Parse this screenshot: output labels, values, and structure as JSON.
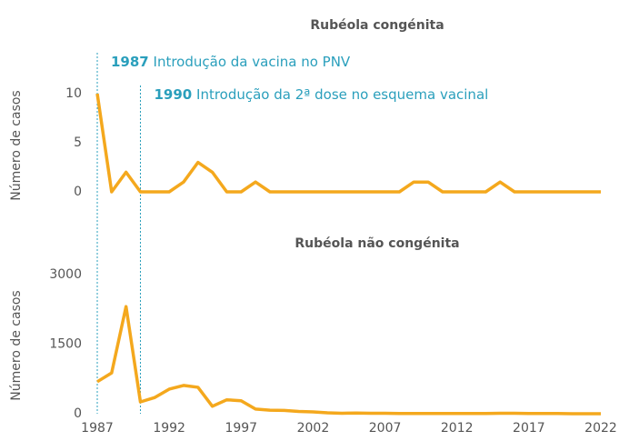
{
  "chart_data": [
    {
      "type": "line",
      "title": "Rubéola congénita",
      "y_label": "Número de casos",
      "x": [
        1987,
        1988,
        1989,
        1990,
        1991,
        1992,
        1993,
        1994,
        1995,
        1996,
        1997,
        1998,
        1999,
        2000,
        2001,
        2002,
        2003,
        2004,
        2005,
        2006,
        2007,
        2008,
        2009,
        2010,
        2011,
        2012,
        2013,
        2014,
        2015,
        2016,
        2017,
        2018,
        2019,
        2020,
        2021,
        2022
      ],
      "series": [
        {
          "name": "Rubéola congénita",
          "color": "#f4a81d",
          "values": [
            10,
            0,
            2,
            0,
            0,
            0,
            1,
            3,
            2,
            0,
            0,
            1,
            0,
            0,
            0,
            0,
            0,
            0,
            0,
            0,
            0,
            0,
            1,
            1,
            0,
            0,
            0,
            0,
            1,
            0,
            0,
            0,
            0,
            0,
            0,
            0
          ]
        }
      ],
      "xlim": [
        1987,
        2022
      ],
      "ylim": [
        0,
        10
      ],
      "yticks": [
        0,
        5,
        10
      ],
      "annotations": [
        {
          "x": 1987,
          "label": "Introdução da vacina no PNV"
        },
        {
          "x": 1990,
          "label": "Introdução da 2ª dose no esquema vacinal"
        }
      ]
    },
    {
      "type": "line",
      "title": "Rubéola não congénita",
      "y_label": "Número de casos",
      "x": [
        1987,
        1988,
        1989,
        1990,
        1991,
        1992,
        1993,
        1994,
        1995,
        1996,
        1997,
        1998,
        1999,
        2000,
        2001,
        2002,
        2003,
        2004,
        2005,
        2006,
        2007,
        2008,
        2009,
        2010,
        2011,
        2012,
        2013,
        2014,
        2015,
        2016,
        2017,
        2018,
        2019,
        2020,
        2021,
        2022
      ],
      "series": [
        {
          "name": "Rubéola não congénita",
          "color": "#f4a81d",
          "values": [
            690,
            880,
            2310,
            255,
            350,
            530,
            610,
            570,
            160,
            300,
            280,
            100,
            75,
            70,
            50,
            40,
            20,
            10,
            15,
            10,
            10,
            5,
            5,
            5,
            5,
            5,
            5,
            5,
            10,
            10,
            5,
            5,
            5,
            0,
            0,
            0
          ]
        }
      ],
      "xlim": [
        1987,
        2022
      ],
      "ylim": [
        0,
        3000
      ],
      "yticks": [
        0,
        1500,
        3000
      ],
      "xticks": [
        1987,
        1992,
        1997,
        2002,
        2007,
        2012,
        2017,
        2022
      ]
    }
  ]
}
